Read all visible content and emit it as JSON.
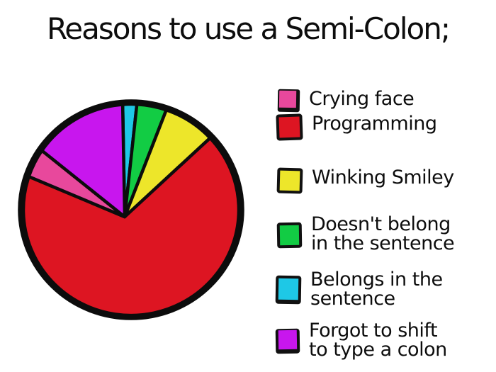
{
  "title": "Reasons to use a Semi-Colon;",
  "legend": {
    "items": [
      {
        "line1": "Crying face",
        "line2": ""
      },
      {
        "line1": "Programming",
        "line2": ""
      },
      {
        "line1": "Winking Smiley",
        "line2": ""
      },
      {
        "line1": "Doesn't belong",
        "line2": "in the sentence"
      },
      {
        "line1": "Belongs in the",
        "line2": "sentence"
      },
      {
        "line1": "Forgot to shift",
        "line2": "to type a colon"
      }
    ]
  },
  "chart_data": {
    "type": "pie",
    "title": "Reasons to use a Semi-Colon;",
    "legend_position": "right",
    "values_are_percent": true,
    "outline_color": "#0c0c0c",
    "slices": [
      {
        "label": "Belongs in the sentence",
        "color": "#1ec8e6",
        "percent": 2.1,
        "start_deg": -4.5,
        "end_deg": 3.1
      },
      {
        "label": "Doesn't belong in the sentence",
        "color": "#12cc44",
        "percent": 4.4,
        "start_deg": 3.1,
        "end_deg": 19.1
      },
      {
        "label": "Winking Smiley",
        "color": "#ede62a",
        "percent": 7.8,
        "start_deg": 19.1,
        "end_deg": 47.2
      },
      {
        "label": "Programming",
        "color": "#dd1522",
        "percent": 67.0,
        "start_deg": 47.2,
        "end_deg": 288.3
      },
      {
        "label": "Crying face",
        "color": "#e8489c",
        "percent": 4.4,
        "start_deg": 288.3,
        "end_deg": 304.1
      },
      {
        "label": "Forgot to shift to type a colon",
        "color": "#c816ee",
        "percent": 14.3,
        "start_deg": 304.1,
        "end_deg": 355.5
      }
    ]
  }
}
